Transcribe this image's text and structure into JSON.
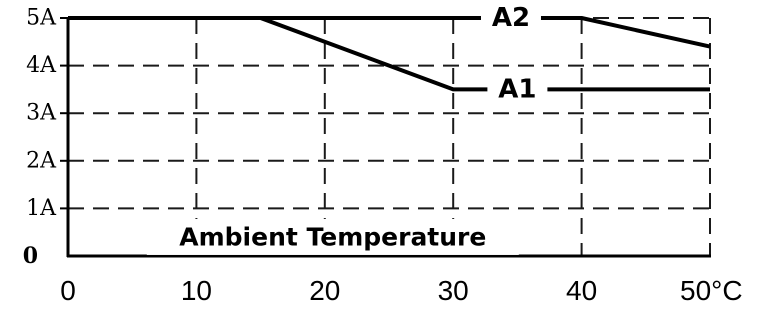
{
  "chart_data": {
    "type": "line",
    "xlabel": "",
    "ylabel": "",
    "annotation": "Ambient Temperature",
    "xlim": [
      0,
      50
    ],
    "ylim": [
      0,
      5
    ],
    "x_ticks": [
      {
        "value": 0,
        "label": "0"
      },
      {
        "value": 10,
        "label": "10"
      },
      {
        "value": 20,
        "label": "20"
      },
      {
        "value": 30,
        "label": "30"
      },
      {
        "value": 40,
        "label": "40"
      },
      {
        "value": 50,
        "label": "50°C"
      }
    ],
    "y_ticks": [
      {
        "value": 0,
        "label": "0"
      },
      {
        "value": 1,
        "label": "1A"
      },
      {
        "value": 2,
        "label": "2A"
      },
      {
        "value": 3,
        "label": "3A"
      },
      {
        "value": 4,
        "label": "4A"
      },
      {
        "value": 5,
        "label": "5A"
      }
    ],
    "grid": true,
    "series": [
      {
        "name": "A2",
        "points": [
          [
            0,
            5
          ],
          [
            40,
            5
          ],
          [
            50,
            4.4
          ]
        ],
        "label_at": [
          34.5,
          5
        ]
      },
      {
        "name": "A1",
        "points": [
          [
            0,
            5
          ],
          [
            15,
            5
          ],
          [
            30,
            3.5
          ],
          [
            50,
            3.5
          ]
        ],
        "label_at": [
          35,
          3.5
        ]
      }
    ]
  }
}
